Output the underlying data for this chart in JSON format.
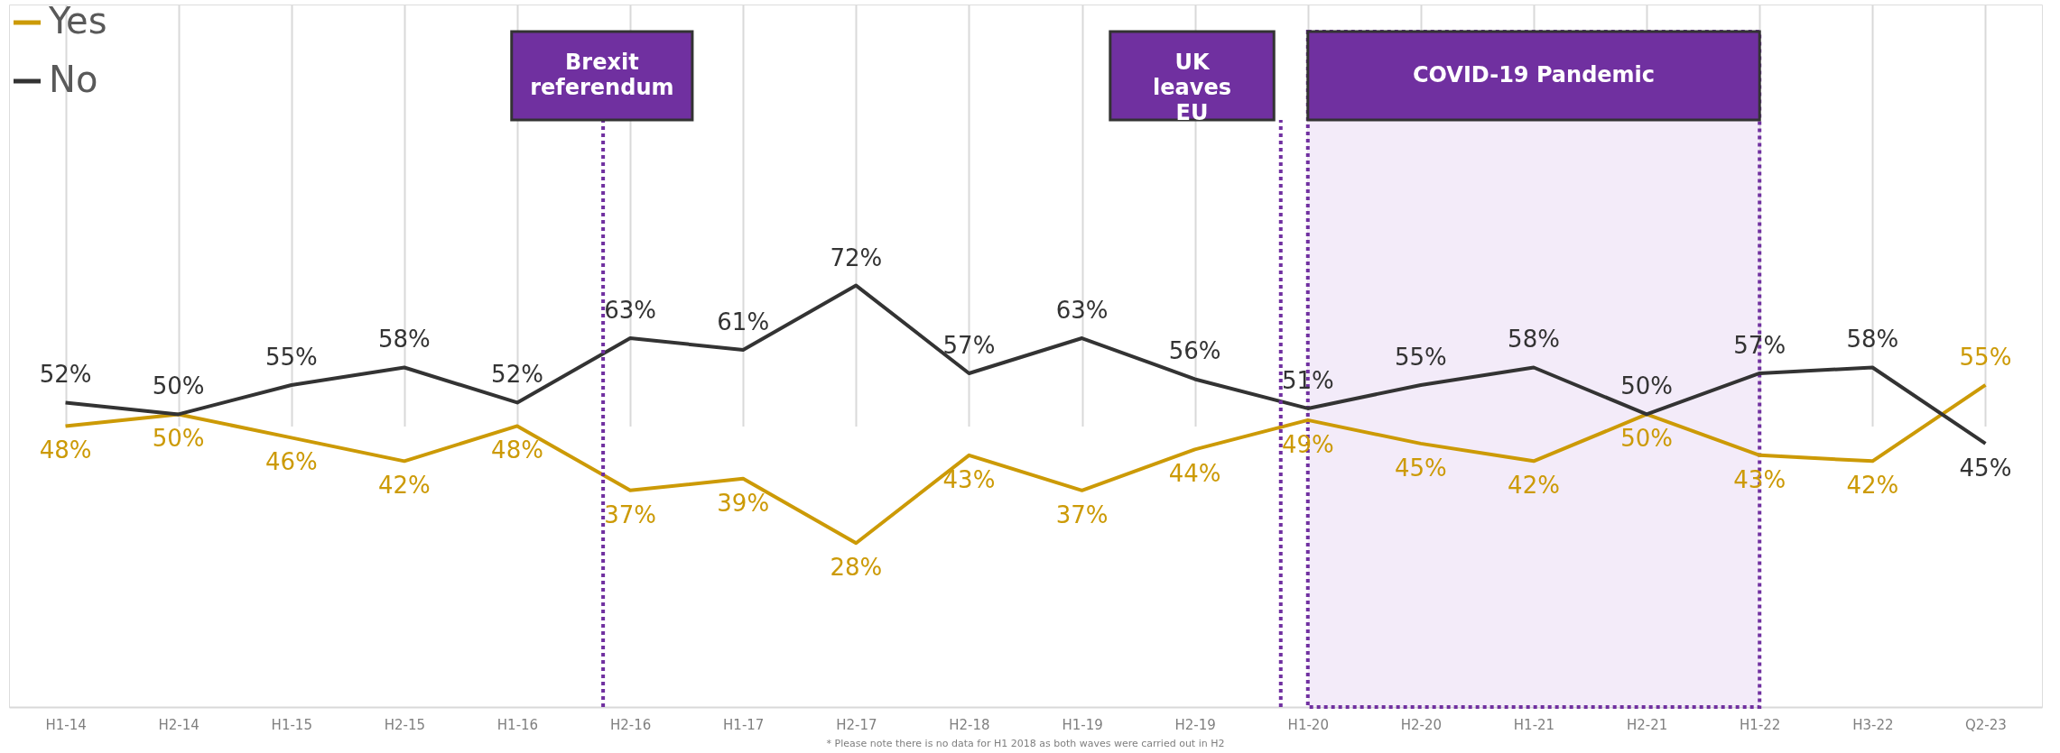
{
  "chart_data": {
    "type": "line",
    "categories": [
      "H1-14",
      "H2-14",
      "H1-15",
      "H2-15",
      "H1-16",
      "H2-16",
      "H1-17",
      "H2-17",
      "H2-18",
      "H1-19",
      "H2-19",
      "H1-20",
      "H2-20",
      "H1-21",
      "H2-21",
      "H1-22",
      "H3-22",
      "Q2-23"
    ],
    "series": [
      {
        "name": "Yes",
        "color": "#cc9a06",
        "values": [
          48,
          50,
          46,
          42,
          48,
          37,
          39,
          28,
          43,
          37,
          44,
          49,
          45,
          42,
          50,
          43,
          42,
          55
        ],
        "value_labels": [
          "48%",
          "50%",
          "46%",
          "42%",
          "48%",
          "37%",
          "39%",
          "28%",
          "43%",
          "37%",
          "44%",
          "49%",
          "45%",
          "42%",
          "50%",
          "43%",
          "42%",
          "55%"
        ]
      },
      {
        "name": "No",
        "color": "#333333",
        "values": [
          52,
          50,
          55,
          58,
          52,
          63,
          61,
          72,
          57,
          63,
          56,
          51,
          55,
          58,
          50,
          57,
          58,
          45
        ],
        "value_labels": [
          "52%",
          "50%",
          "55%",
          "58%",
          "52%",
          "63%",
          "61%",
          "72%",
          "57%",
          "63%",
          "56%",
          "51%",
          "55%",
          "58%",
          "50%",
          "57%",
          "58%",
          "45%"
        ]
      }
    ],
    "grid": "x",
    "legend": "top left",
    "marker": "none",
    "line_style": "solid",
    "ref_lines": [
      {
        "axis": "x",
        "value": "H2-16",
        "label": "Brexit referendum",
        "color": "#7030a0",
        "line_style": "dotted"
      },
      {
        "axis": "x",
        "value": "H1-20",
        "label": "UK leaves EU",
        "color": "#7030a0",
        "line_style": "dotted"
      }
    ],
    "bands": [
      {
        "axis": "x",
        "from": "H1-20",
        "to": "H1-22",
        "label": "COVID-19 Pandemic",
        "color": "#f3ebf9"
      }
    ],
    "annotations": [
      "* Please note there is no data for H1 2018 as both waves were carried out in H2"
    ]
  }
}
